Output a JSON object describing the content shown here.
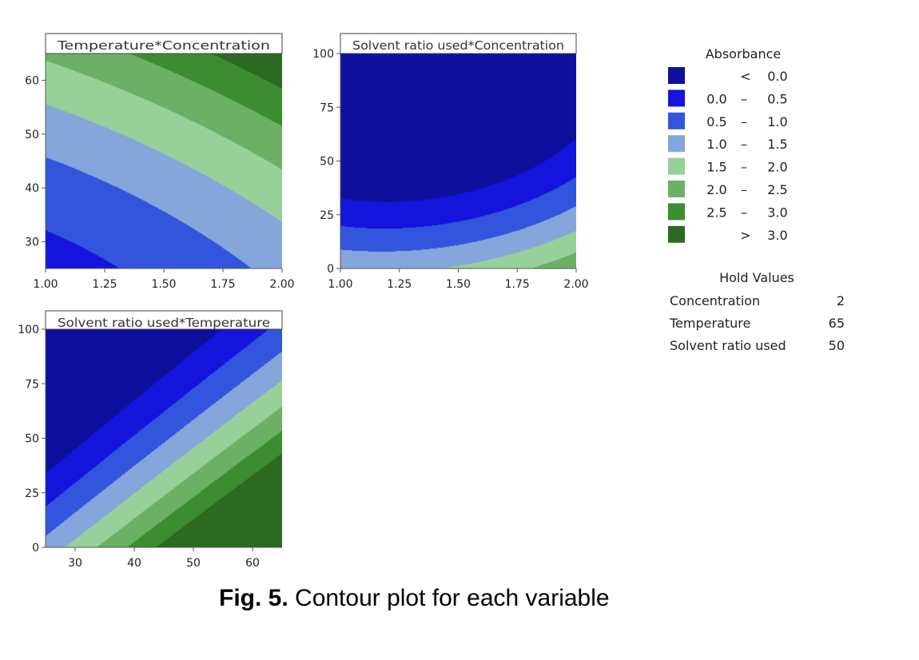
{
  "chart_data": [
    {
      "type": "contour",
      "title": "Temperature*Concentration",
      "x_var": "Concentration",
      "y_var": "Temperature",
      "xlim": [
        1.0,
        2.0
      ],
      "ylim": [
        25,
        65
      ],
      "xticks": [
        "1.00",
        "1.25",
        "1.50",
        "1.75",
        "2.00"
      ],
      "yticks": [
        "30",
        "40",
        "50",
        "60"
      ],
      "xtick_values": [
        1.0,
        1.25,
        1.5,
        1.75,
        2.0
      ],
      "ytick_values": [
        30,
        40,
        50,
        60
      ],
      "model": {
        "c": [
          0.5525,
          -0.75,
          -0.025,
          0.4,
          0.0006,
          0.015,
          0,
          0,
          0
        ]
      }
    },
    {
      "type": "contour",
      "title": "Solvent ratio used*Concentration",
      "x_var": "Concentration",
      "y_var": "Solvent ratio used",
      "xlim": [
        1.0,
        2.0
      ],
      "ylim": [
        0,
        100
      ],
      "xticks": [
        "1.00",
        "1.25",
        "1.50",
        "1.75",
        "2.00"
      ],
      "yticks": [
        "0",
        "25",
        "50",
        "75",
        "100"
      ],
      "xtick_values": [
        1.0,
        1.25,
        1.5,
        1.75,
        2.0
      ],
      "ytick_values": [
        0,
        25,
        50,
        75,
        100
      ],
      "model": {
        "c": [
          3.37,
          -3.36,
          -0.0504,
          1.44,
          0.00028,
          -0.0032,
          0,
          0,
          0
        ]
      }
    },
    {
      "type": "contour",
      "title": "Solvent ratio used*Temperature",
      "x_var": "Temperature",
      "y_var": "Solvent ratio used",
      "xlim": [
        25,
        65
      ],
      "ylim": [
        0,
        100
      ],
      "xticks": [
        "30",
        "40",
        "50",
        "60"
      ],
      "yticks": [
        "0",
        "25",
        "50",
        "75",
        "100"
      ],
      "xtick_values": [
        30,
        40,
        50,
        60
      ],
      "ytick_values": [
        0,
        25,
        50,
        75,
        100
      ],
      "model": {
        "c": [
          -0.7,
          0.065,
          -0.027,
          0.00045,
          0.00015,
          -0.00055,
          0,
          0,
          0
        ]
      }
    }
  ],
  "legend": {
    "title": "Absorbance",
    "levels": [
      {
        "cmp": "<",
        "lo": "",
        "dash": "",
        "hi": "0.0",
        "color": "#0f0f9e"
      },
      {
        "cmp": "",
        "lo": "0.0",
        "dash": "–",
        "hi": "0.5",
        "color": "#1414dc"
      },
      {
        "cmp": "",
        "lo": "0.5",
        "dash": "–",
        "hi": "1.0",
        "color": "#3355dd"
      },
      {
        "cmp": "",
        "lo": "1.0",
        "dash": "–",
        "hi": "1.5",
        "color": "#85a6db"
      },
      {
        "cmp": "",
        "lo": "1.5",
        "dash": "–",
        "hi": "2.0",
        "color": "#98d09a"
      },
      {
        "cmp": "",
        "lo": "2.0",
        "dash": "–",
        "hi": "2.5",
        "color": "#6cb065"
      },
      {
        "cmp": "",
        "lo": "2.5",
        "dash": "–",
        "hi": "3.0",
        "color": "#3c8c32"
      },
      {
        "cmp": ">",
        "lo": "",
        "dash": "",
        "hi": "3.0",
        "color": "#2c6a22"
      }
    ],
    "thresholds": [
      0.0,
      0.5,
      1.0,
      1.5,
      2.0,
      2.5,
      3.0
    ]
  },
  "hold": {
    "title": "Hold Values",
    "rows": [
      {
        "name": "Concentration",
        "value": "2"
      },
      {
        "name": "Temperature",
        "value": "65"
      },
      {
        "name": "Solvent ratio used",
        "value": "50"
      }
    ]
  },
  "caption": {
    "label": "Fig. 5.",
    "text": " Contour plot for each variable"
  }
}
